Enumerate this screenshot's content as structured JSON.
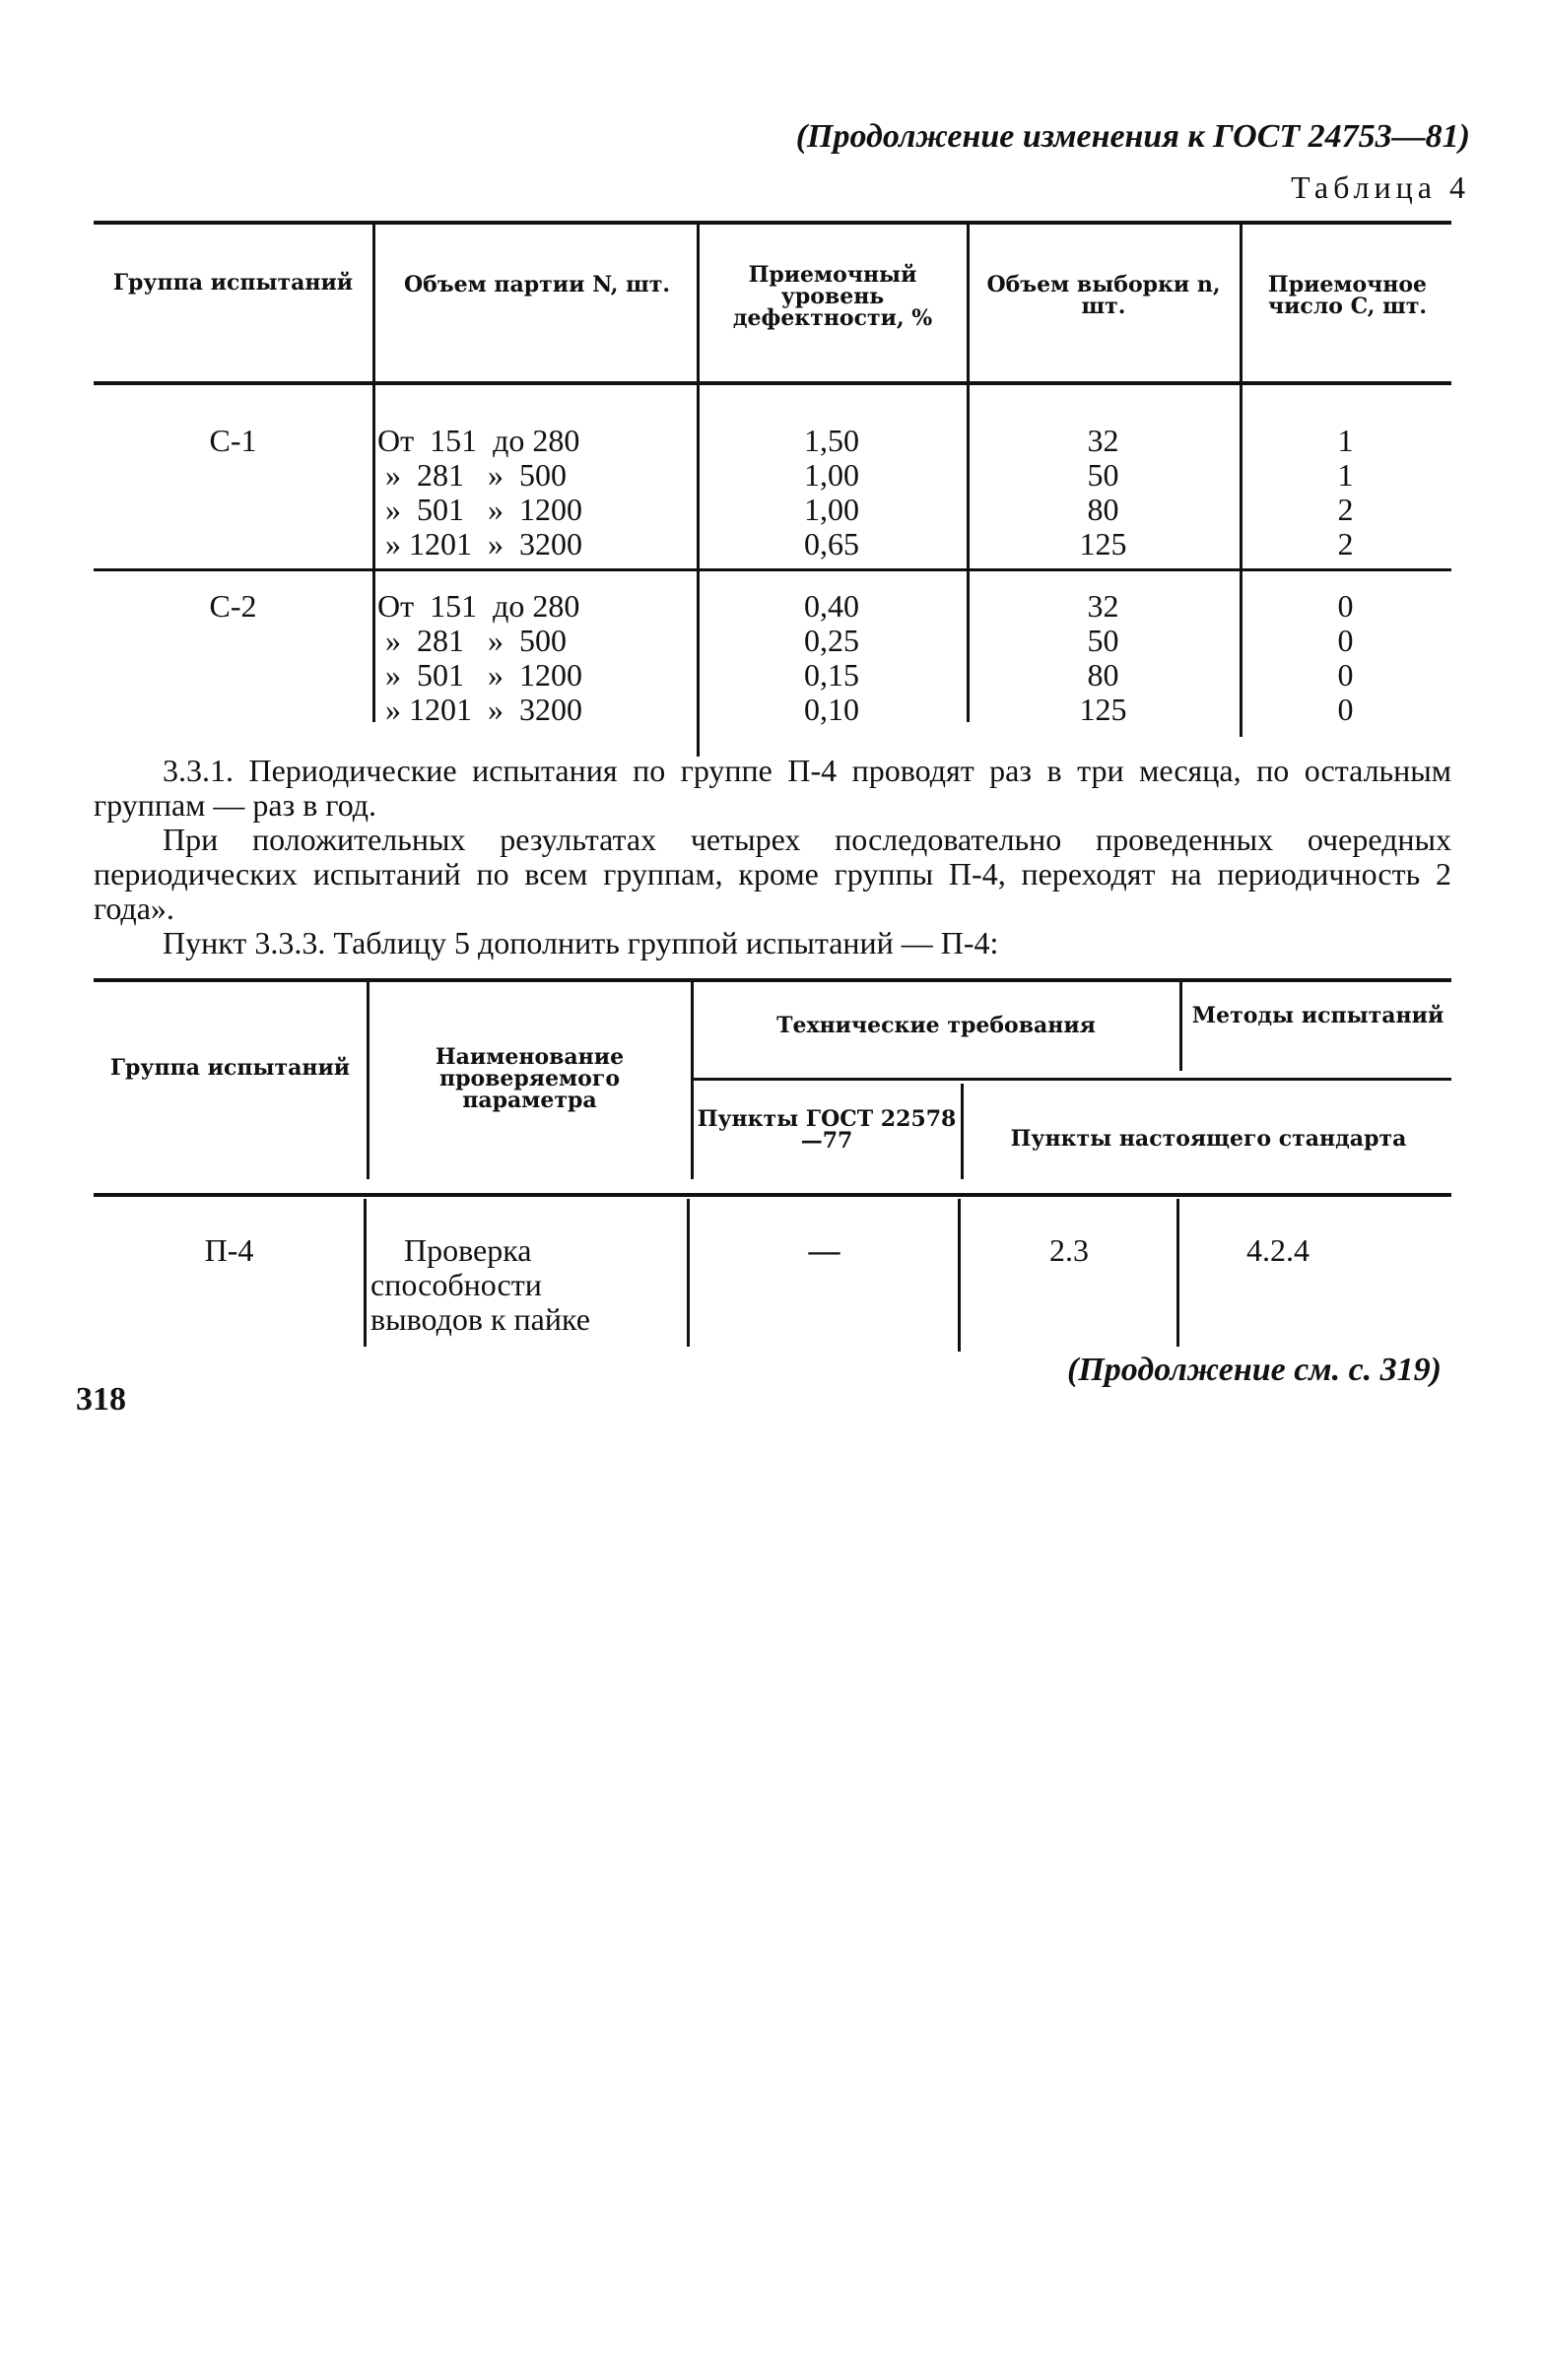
{
  "running_header": "(Продолжение изменения к ГОСТ 24753—81)",
  "table4": {
    "caption": "Таблица 4",
    "headers": [
      "Группа испытаний",
      "Объем партии N, шт.",
      "Приемочный уровень дефектности, %",
      "Объем выборки n, шт.",
      "Приемочное число C, шт."
    ],
    "groups": [
      {
        "group": "С-1",
        "rows": [
          {
            "range": "От  151  до 280",
            "aql": "1,50",
            "sample": "32",
            "accept": "1"
          },
          {
            "range": " »  281   »  500",
            "aql": "1,00",
            "sample": "50",
            "accept": "1"
          },
          {
            "range": " »  501   »  1200",
            "aql": "1,00",
            "sample": "80",
            "accept": "2"
          },
          {
            "range": " » 1201  »  3200",
            "aql": "0,65",
            "sample": "125",
            "accept": "2"
          }
        ]
      },
      {
        "group": "С-2",
        "rows": [
          {
            "range": "От  151  до 280",
            "aql": "0,40",
            "sample": "32",
            "accept": "0"
          },
          {
            "range": " »  281   »  500",
            "aql": "0,25",
            "sample": "50",
            "accept": "0"
          },
          {
            "range": " »  501   »  1200",
            "aql": "0,15",
            "sample": "80",
            "accept": "0"
          },
          {
            "range": " » 1201  »  3200",
            "aql": "0,10",
            "sample": "125",
            "accept": "0"
          }
        ]
      }
    ]
  },
  "paragraphs": [
    "3.3.1. Периодические испытания по группе П-4 проводят раз в три месяца, по остальным группам — раз в год.",
    "При положительных результатах четырех последовательно проведенных очередных периодических испытаний по всем группам, кроме группы П-4, переходят на периодичность 2 года».",
    "Пункт 3.3.3. Таблицу 5 дополнить группой испытаний — П-4:"
  ],
  "table5": {
    "headers": {
      "group": "Группа испытаний",
      "param": "Наименование проверяемого параметра",
      "tech": "Технические требования",
      "methods": "Методы испытаний",
      "gost": "Пункты ГОСТ 22578—77",
      "std": "Пункты настоящего стандарта"
    },
    "row": {
      "group": "П-4",
      "param": "Проверка способности выводов к пайке",
      "gost": "—",
      "std": "2.3",
      "methods": "4.2.4"
    }
  },
  "footer_note": "(Продолжение см. с. 319)",
  "page_number": "318"
}
